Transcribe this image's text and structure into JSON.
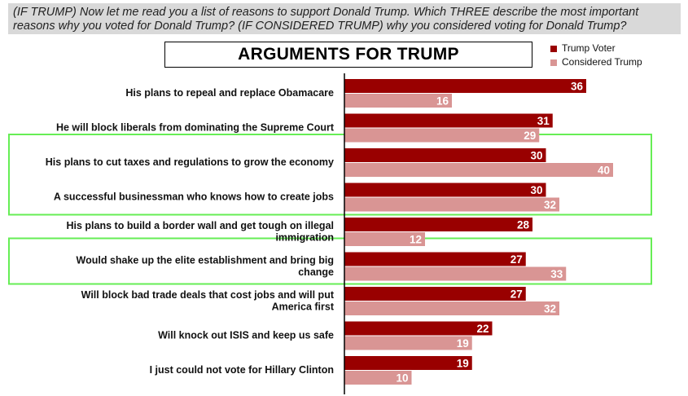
{
  "question": "(IF TRUMP) Now let me read you a list of reasons to support Donald Trump. Which THREE describe the most important reasons why you voted for Donald Trump? (IF CONSIDERED TRUMP) why you considered voting for Donald Trump?",
  "chart_data": {
    "type": "bar",
    "orientation": "horizontal",
    "title": "ARGUMENTS FOR TRUMP",
    "legend_position": "top-right",
    "categories": [
      "His plans to repeal and replace Obamacare",
      "He will block liberals from dominating the Supreme Court",
      "His plans to cut taxes and regulations to grow the economy",
      "A successful businessman who knows how to create jobs",
      "His plans to build a border wall and get tough on illegal immigration",
      "Would shake up the elite establishment and bring big change",
      "Will block bad trade deals that cost jobs and will put America first",
      "Will knock out ISIS and keep us safe",
      "I just could not vote for Hillary Clinton"
    ],
    "series": [
      {
        "name": "Trump Voter",
        "color": "#990000",
        "values": [
          36,
          31,
          30,
          30,
          28,
          27,
          27,
          22,
          19
        ]
      },
      {
        "name": "Considered Trump",
        "color": "#d99594",
        "values": [
          16,
          29,
          40,
          32,
          12,
          33,
          32,
          19,
          10
        ]
      }
    ],
    "highlighted_categories": [
      [
        2,
        3
      ],
      [
        5
      ]
    ],
    "highlight_color": "#66ee55",
    "xlim": [
      0,
      100
    ],
    "grid": false
  }
}
